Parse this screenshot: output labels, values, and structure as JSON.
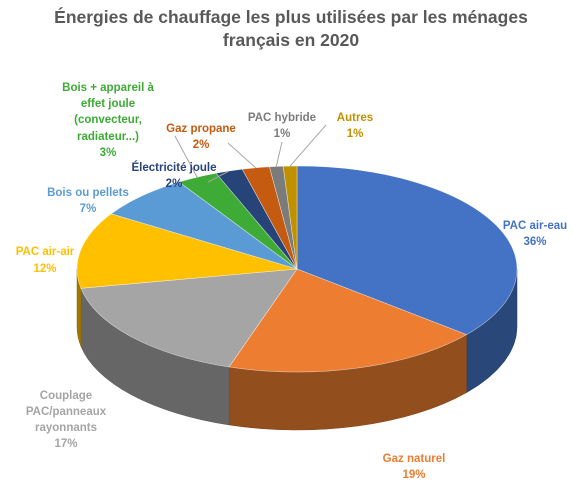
{
  "chart_data": {
    "type": "pie",
    "title_lines": [
      "Énergies de chauffage les plus utilisées par les ménages",
      "français en 2020"
    ],
    "label_unit": "%",
    "slices": [
      {
        "label_lines": [
          "PAC air-eau"
        ],
        "value": 36,
        "value_label": "36%",
        "color": "#4472C4",
        "label_color": "#4472C4"
      },
      {
        "label_lines": [
          "Gaz naturel"
        ],
        "value": 19,
        "value_label": "19%",
        "color": "#ED7D31",
        "label_color": "#ED7D31"
      },
      {
        "label_lines": [
          "Couplage",
          "PAC/panneaux",
          "rayonnants"
        ],
        "value": 17,
        "value_label": "17%",
        "color": "#A5A5A5",
        "label_color": "#A5A5A5"
      },
      {
        "label_lines": [
          "PAC air-air"
        ],
        "value": 12,
        "value_label": "12%",
        "color": "#FFC000",
        "label_color": "#FFC000"
      },
      {
        "label_lines": [
          "Bois ou pellets"
        ],
        "value": 7,
        "value_label": "7%",
        "color": "#5B9BD5",
        "label_color": "#5B9BD5"
      },
      {
        "label_lines": [
          "Bois + appareil à",
          "effet joule",
          "(convecteur,",
          "radiateur...)"
        ],
        "value": 3,
        "value_label": "3%",
        "color": "#3DAB35",
        "label_color": "#3DAB35"
      },
      {
        "label_lines": [
          "Électricité joule"
        ],
        "value": 2,
        "value_label": "2%",
        "color": "#264478",
        "label_color": "#264478"
      },
      {
        "label_lines": [
          "Gaz propane"
        ],
        "value": 2,
        "value_label": "2%",
        "color": "#C55A11",
        "label_color": "#C55A11"
      },
      {
        "label_lines": [
          "PAC hybride"
        ],
        "value": 1,
        "value_label": "1%",
        "color": "#7B7B7B",
        "label_color": "#7B7B7B"
      },
      {
        "label_lines": [
          "Autres"
        ],
        "value": 1,
        "value_label": "1%",
        "color": "#BF9000",
        "label_color": "#BF9000"
      }
    ],
    "style": "3D pie with leader lines",
    "legend": "none"
  }
}
